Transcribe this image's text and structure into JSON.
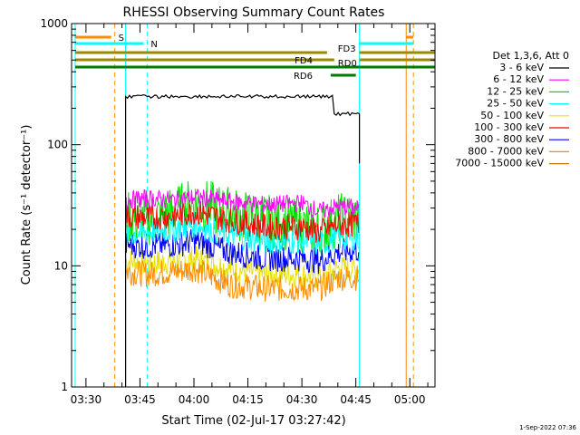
{
  "chart_data": {
    "type": "line",
    "title": "RHESSI Observing Summary Count Rates",
    "xlabel": "Start Time (02-Jul-17 03:27:42)",
    "ylabel": "Count Rate (s⁻¹ detector⁻¹)",
    "yscale": "log",
    "ylim": [
      1,
      1000
    ],
    "xlim": [
      "03:26",
      "05:07"
    ],
    "x_ticks": [
      "03:30",
      "03:45",
      "04:00",
      "04:15",
      "04:30",
      "04:45",
      "05:00"
    ],
    "y_ticks": [
      "1",
      "10",
      "100",
      "1000"
    ],
    "grid": false,
    "legend_title": "Det 1,3,6, Att 0",
    "legend_position": "right",
    "series": [
      {
        "name": "3 - 6 keV",
        "color": "#000000",
        "x": [
          "03:41",
          "03:41",
          "03:47",
          "04:00",
          "04:15",
          "04:30",
          "04:38",
          "04:39",
          "04:45",
          "04:46",
          "04:46"
        ],
        "values": [
          0,
          250,
          250,
          250,
          250,
          250,
          250,
          180,
          180,
          180,
          70
        ]
      },
      {
        "name": "6 - 12 keV",
        "color": "#ff00ff",
        "x": [
          "03:41",
          "03:47",
          "03:55",
          "04:00",
          "04:10",
          "04:20",
          "04:30",
          "04:35",
          "04:40",
          "04:46"
        ],
        "values": [
          35,
          36,
          35,
          37,
          34,
          32,
          33,
          28,
          31,
          30
        ]
      },
      {
        "name": "12 - 25 keV",
        "color": "#00e000",
        "x": [
          "03:41",
          "03:47",
          "03:55",
          "04:00",
          "04:05",
          "04:15",
          "04:25",
          "04:35",
          "04:40",
          "04:46"
        ],
        "values": [
          25,
          24,
          28,
          33,
          30,
          25,
          22,
          20,
          24,
          25
        ]
      },
      {
        "name": "25 - 50 keV",
        "color": "#00ffff",
        "x": [
          "03:41",
          "03:47",
          "03:55",
          "04:00",
          "04:10",
          "04:20",
          "04:30",
          "04:35",
          "04:40",
          "04:46"
        ],
        "values": [
          18,
          19,
          20,
          22,
          18,
          16,
          16,
          15,
          17,
          17
        ]
      },
      {
        "name": "50 - 100 keV",
        "color": "#e8e000",
        "x": [
          "03:41",
          "03:47",
          "03:55",
          "04:00",
          "04:10",
          "04:20",
          "04:30",
          "04:35",
          "04:40",
          "04:46"
        ],
        "values": [
          11,
          10.5,
          11,
          11.5,
          9.5,
          8.5,
          8.5,
          8,
          9.5,
          9.5
        ]
      },
      {
        "name": "100 - 300 keV",
        "color": "#ff0000",
        "x": [
          "03:41",
          "03:47",
          "03:55",
          "04:00",
          "04:10",
          "04:20",
          "04:30",
          "04:35",
          "04:40",
          "04:46"
        ],
        "values": [
          26,
          25,
          26,
          28,
          24,
          21,
          21,
          19,
          22,
          22
        ]
      },
      {
        "name": "300 - 800 keV",
        "color": "#0000ff",
        "x": [
          "03:41",
          "03:47",
          "03:55",
          "04:00",
          "04:10",
          "04:20",
          "04:30",
          "04:35",
          "04:40",
          "04:46"
        ],
        "values": [
          15,
          14.5,
          15,
          16,
          13,
          11.5,
          11.5,
          11,
          13,
          13.5
        ]
      },
      {
        "name": "800 - 7000 keV",
        "color": "#ff8c00",
        "x": [
          "03:41",
          "03:47",
          "03:55",
          "04:00",
          "04:10",
          "04:20",
          "04:30",
          "04:35",
          "04:40",
          "04:46"
        ],
        "values": [
          9,
          8.5,
          9,
          9.5,
          7,
          6.5,
          6.5,
          6.5,
          8,
          8
        ]
      },
      {
        "name": "7000 - 15000 keV",
        "color": "#c87800",
        "x": [],
        "values": []
      }
    ],
    "annotations": [
      {
        "label": "S",
        "color": "#ff8c00",
        "type": "flag"
      },
      {
        "label": "N",
        "color": "#00ffff",
        "type": "flag"
      },
      {
        "label": "FD3",
        "color": "#9a8a00",
        "type": "flag"
      },
      {
        "label": "FD4",
        "color": "#9a8a00",
        "type": "flag"
      },
      {
        "label": "RD0",
        "color": "#007a00",
        "type": "flag"
      },
      {
        "label": "RD6",
        "color": "#007a00",
        "type": "flag"
      }
    ]
  },
  "footer": {
    "timestamp": "1-Sep-2022 07:36"
  }
}
